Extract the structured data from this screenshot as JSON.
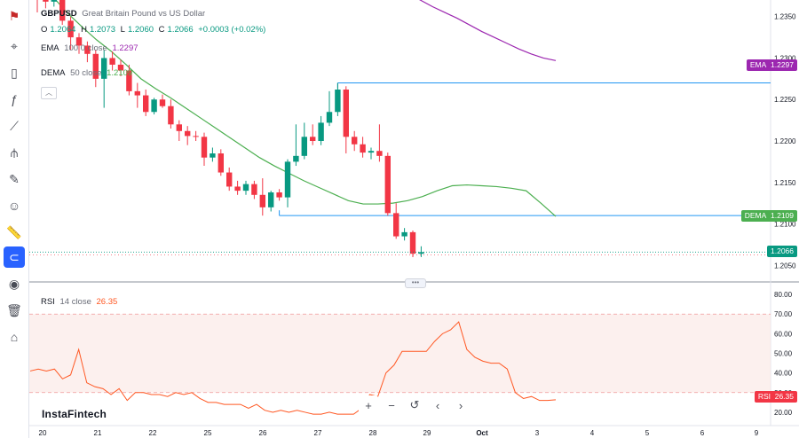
{
  "legend": {
    "symbol": "GBPUSD",
    "description": "Great Britain Pound vs US Dollar",
    "o_label": "O",
    "o_value": "1.2064",
    "h_label": "H",
    "h_value": "1.2073",
    "l_label": "L",
    "l_value": "1.2060",
    "c_label": "C",
    "c_value": "1.2066",
    "change": "+0.0003 (+0.02%)",
    "ema_label": "EMA",
    "ema_params": "100 0 close",
    "ema_value": "1.2297",
    "dema_label": "DEMA",
    "dema_params": "50 close",
    "dema_value": "1.2109",
    "rsi_label": "RSI",
    "rsi_params": "14 close",
    "rsi_value": "26.35"
  },
  "tags": {
    "ema_name": "EMA",
    "ema_value": "1.2297",
    "dema_name": "DEMA",
    "dema_value": "1.2109",
    "last_value": "1.2066",
    "rsi_name": "RSI",
    "rsi_value": "26.35"
  },
  "brand": "InstaFintech",
  "toolbar": {
    "icons": [
      "flag-icon",
      "cursor-icon",
      "candles-icon",
      "formula-icon",
      "line-tool-icon",
      "pitchfork-icon",
      "brush-icon",
      "emoji-icon",
      "ruler-icon",
      "magnet-icon",
      "eye-icon",
      "trash-icon",
      "lock-icon"
    ]
  },
  "nav_buttons": [
    "+",
    "−",
    "↺",
    "‹",
    "›"
  ],
  "colors": {
    "up": "#089981",
    "down": "#f23645",
    "ema": "#9c27b0",
    "dema": "#4caf50",
    "rsi": "#ff5722",
    "rsi_band": "#fbe9e7",
    "hline": "#2196f3",
    "accent": "#2962ff"
  },
  "chart_data": [
    {
      "type": "candlestick",
      "title": "GBPUSD",
      "x_tick_labels": [
        "20",
        "21",
        "22",
        "25",
        "26",
        "27",
        "28",
        "29",
        "Oct",
        "3",
        "4",
        "5",
        "6",
        "9"
      ],
      "y_ticks": [
        "1.2350",
        "1.2300",
        "1.2250",
        "1.2200",
        "1.2150",
        "1.2100",
        "1.2050"
      ],
      "ylim": [
        1.203,
        1.237
      ],
      "candles": [
        {
          "o": 1.2385,
          "h": 1.2395,
          "l": 1.2355,
          "c": 1.2375
        },
        {
          "o": 1.2375,
          "h": 1.2385,
          "l": 1.236,
          "c": 1.2368
        },
        {
          "o": 1.2368,
          "h": 1.238,
          "l": 1.2362,
          "c": 1.2374
        },
        {
          "o": 1.2374,
          "h": 1.239,
          "l": 1.234,
          "c": 1.2345
        },
        {
          "o": 1.2345,
          "h": 1.235,
          "l": 1.231,
          "c": 1.2325
        },
        {
          "o": 1.2325,
          "h": 1.233,
          "l": 1.2305,
          "c": 1.2315
        },
        {
          "o": 1.2315,
          "h": 1.232,
          "l": 1.2295,
          "c": 1.2305
        },
        {
          "o": 1.2305,
          "h": 1.231,
          "l": 1.2265,
          "c": 1.2275
        },
        {
          "o": 1.2275,
          "h": 1.231,
          "l": 1.224,
          "c": 1.23
        },
        {
          "o": 1.23,
          "h": 1.2308,
          "l": 1.2285,
          "c": 1.2292
        },
        {
          "o": 1.2292,
          "h": 1.2298,
          "l": 1.2278,
          "c": 1.2285
        },
        {
          "o": 1.2285,
          "h": 1.2292,
          "l": 1.2255,
          "c": 1.226
        },
        {
          "o": 1.226,
          "h": 1.227,
          "l": 1.224,
          "c": 1.2255
        },
        {
          "o": 1.2255,
          "h": 1.2262,
          "l": 1.223,
          "c": 1.2235
        },
        {
          "o": 1.2235,
          "h": 1.2252,
          "l": 1.2232,
          "c": 1.225
        },
        {
          "o": 1.225,
          "h": 1.2256,
          "l": 1.224,
          "c": 1.2242
        },
        {
          "o": 1.2242,
          "h": 1.225,
          "l": 1.2215,
          "c": 1.222
        },
        {
          "o": 1.222,
          "h": 1.2225,
          "l": 1.22,
          "c": 1.2212
        },
        {
          "o": 1.2212,
          "h": 1.2218,
          "l": 1.2195,
          "c": 1.2206
        },
        {
          "o": 1.2206,
          "h": 1.2212,
          "l": 1.22,
          "c": 1.2205
        },
        {
          "o": 1.2205,
          "h": 1.221,
          "l": 1.217,
          "c": 1.218
        },
        {
          "o": 1.218,
          "h": 1.2192,
          "l": 1.2175,
          "c": 1.2185
        },
        {
          "o": 1.2185,
          "h": 1.219,
          "l": 1.2158,
          "c": 1.2162
        },
        {
          "o": 1.2162,
          "h": 1.2168,
          "l": 1.214,
          "c": 1.2145
        },
        {
          "o": 1.2145,
          "h": 1.2152,
          "l": 1.2135,
          "c": 1.214
        },
        {
          "o": 1.214,
          "h": 1.2152,
          "l": 1.2135,
          "c": 1.2148
        },
        {
          "o": 1.2148,
          "h": 1.2152,
          "l": 1.213,
          "c": 1.2135
        },
        {
          "o": 1.2135,
          "h": 1.2155,
          "l": 1.211,
          "c": 1.212
        },
        {
          "o": 1.212,
          "h": 1.214,
          "l": 1.2115,
          "c": 1.2138
        },
        {
          "o": 1.2138,
          "h": 1.2142,
          "l": 1.2128,
          "c": 1.2132
        },
        {
          "o": 1.2132,
          "h": 1.2178,
          "l": 1.212,
          "c": 1.2175
        },
        {
          "o": 1.2175,
          "h": 1.222,
          "l": 1.217,
          "c": 1.2182
        },
        {
          "o": 1.2182,
          "h": 1.2222,
          "l": 1.2178,
          "c": 1.2205
        },
        {
          "o": 1.2205,
          "h": 1.222,
          "l": 1.2195,
          "c": 1.22
        },
        {
          "o": 1.22,
          "h": 1.223,
          "l": 1.2195,
          "c": 1.2222
        },
        {
          "o": 1.2222,
          "h": 1.226,
          "l": 1.2218,
          "c": 1.2235
        },
        {
          "o": 1.2235,
          "h": 1.227,
          "l": 1.223,
          "c": 1.2262
        },
        {
          "o": 1.2262,
          "h": 1.2266,
          "l": 1.2185,
          "c": 1.2205
        },
        {
          "o": 1.2205,
          "h": 1.2212,
          "l": 1.2188,
          "c": 1.2196
        },
        {
          "o": 1.2196,
          "h": 1.2205,
          "l": 1.218,
          "c": 1.2186
        },
        {
          "o": 1.2186,
          "h": 1.2192,
          "l": 1.2178,
          "c": 1.2188
        },
        {
          "o": 1.2188,
          "h": 1.222,
          "l": 1.2175,
          "c": 1.2182
        },
        {
          "o": 1.2182,
          "h": 1.2186,
          "l": 1.211,
          "c": 1.2113
        },
        {
          "o": 1.2113,
          "h": 1.2125,
          "l": 1.2082,
          "c": 1.2085
        },
        {
          "o": 1.2085,
          "h": 1.2095,
          "l": 1.208,
          "c": 1.209
        },
        {
          "o": 1.209,
          "h": 1.2092,
          "l": 1.206,
          "c": 1.2064
        },
        {
          "o": 1.2064,
          "h": 1.2073,
          "l": 1.206,
          "c": 1.2066
        }
      ],
      "ema100": [
        1.241,
        1.2405,
        1.24,
        1.2393,
        1.2386,
        1.2378,
        1.237,
        1.2362,
        1.2355,
        1.2348,
        1.234,
        1.2332,
        1.2325,
        1.2318,
        1.2311,
        1.2305,
        1.23,
        1.2297
      ],
      "dema50": [
        1.2395,
        1.2375,
        1.2355,
        1.2338,
        1.2322,
        1.2308,
        1.2292,
        1.2275,
        1.2263,
        1.2252,
        1.224,
        1.2228,
        1.2216,
        1.2204,
        1.2192,
        1.218,
        1.217,
        1.2161,
        1.2152,
        1.2144,
        1.2136,
        1.2128,
        1.2124,
        1.2124,
        1.2125,
        1.2128,
        1.2133,
        1.214,
        1.2146,
        1.2147,
        1.2146,
        1.2145,
        1.2143,
        1.214,
        1.2125,
        1.2109
      ],
      "hlines": [
        1.227,
        1.211
      ],
      "last_price": 1.2066
    },
    {
      "type": "line",
      "title": "RSI",
      "y_ticks": [
        "80.00",
        "70.00",
        "60.00",
        "50.00",
        "40.00",
        "30.00",
        "20.00"
      ],
      "ylim": [
        15,
        85
      ],
      "band": [
        30,
        70
      ],
      "values": [
        41,
        42,
        41,
        42,
        37,
        39,
        52,
        35,
        33,
        32,
        29,
        32,
        26,
        30,
        30,
        29,
        29,
        28,
        30,
        29,
        30,
        27,
        25,
        25,
        24,
        24,
        24,
        22,
        24,
        21,
        20,
        21,
        20,
        21,
        20,
        19,
        19,
        20,
        19,
        19,
        19,
        22,
        29,
        28,
        40,
        44,
        51,
        51,
        51,
        51,
        56,
        60,
        62,
        66,
        52,
        48,
        46,
        45,
        45,
        42,
        30,
        27,
        28,
        26,
        26,
        26.35
      ]
    }
  ]
}
